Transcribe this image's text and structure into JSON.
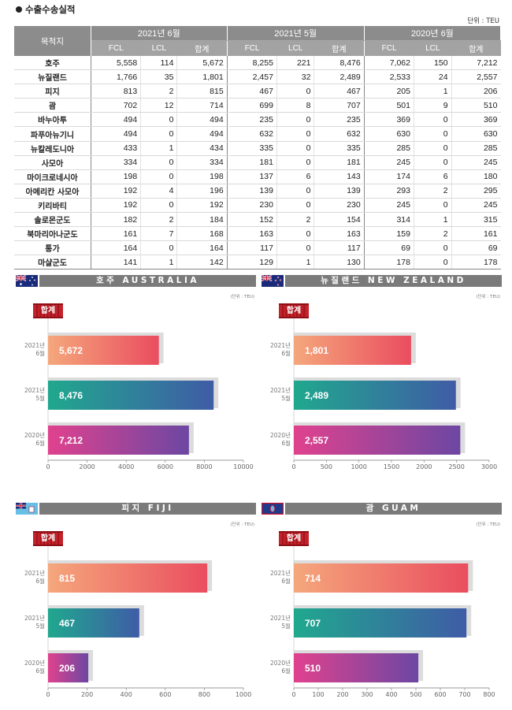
{
  "title": "수출수송실적",
  "unit": "단위 : TEU",
  "table": {
    "dest_header": "목적지",
    "groups": [
      "2021년 6월",
      "2021년 5월",
      "2020년 6월"
    ],
    "subheaders": [
      "FCL",
      "LCL",
      "합계"
    ],
    "rows": [
      {
        "name": "호주",
        "v": [
          "5,558",
          "114",
          "5,672",
          "8,255",
          "221",
          "8,476",
          "7,062",
          "150",
          "7,212"
        ]
      },
      {
        "name": "뉴질랜드",
        "v": [
          "1,766",
          "35",
          "1,801",
          "2,457",
          "32",
          "2,489",
          "2,533",
          "24",
          "2,557"
        ]
      },
      {
        "name": "피지",
        "v": [
          "813",
          "2",
          "815",
          "467",
          "0",
          "467",
          "205",
          "1",
          "206"
        ]
      },
      {
        "name": "괌",
        "v": [
          "702",
          "12",
          "714",
          "699",
          "8",
          "707",
          "501",
          "9",
          "510"
        ]
      },
      {
        "name": "바누아투",
        "v": [
          "494",
          "0",
          "494",
          "235",
          "0",
          "235",
          "369",
          "0",
          "369"
        ]
      },
      {
        "name": "파푸아뉴기니",
        "v": [
          "494",
          "0",
          "494",
          "632",
          "0",
          "632",
          "630",
          "0",
          "630"
        ]
      },
      {
        "name": "뉴칼레도니아",
        "v": [
          "433",
          "1",
          "434",
          "335",
          "0",
          "335",
          "285",
          "0",
          "285"
        ]
      },
      {
        "name": "사모아",
        "v": [
          "334",
          "0",
          "334",
          "181",
          "0",
          "181",
          "245",
          "0",
          "245"
        ]
      },
      {
        "name": "마이크로네시아",
        "v": [
          "198",
          "0",
          "198",
          "137",
          "6",
          "143",
          "174",
          "6",
          "180"
        ]
      },
      {
        "name": "아메리칸 사모아",
        "v": [
          "192",
          "4",
          "196",
          "139",
          "0",
          "139",
          "293",
          "2",
          "295"
        ]
      },
      {
        "name": "키리바티",
        "v": [
          "192",
          "0",
          "192",
          "230",
          "0",
          "230",
          "245",
          "0",
          "245"
        ]
      },
      {
        "name": "솔로몬군도",
        "v": [
          "182",
          "2",
          "184",
          "152",
          "2",
          "154",
          "314",
          "1",
          "315"
        ]
      },
      {
        "name": "북마리아나군도",
        "v": [
          "161",
          "7",
          "168",
          "163",
          "0",
          "163",
          "159",
          "2",
          "161"
        ]
      },
      {
        "name": "통가",
        "v": [
          "164",
          "0",
          "164",
          "117",
          "0",
          "117",
          "69",
          "0",
          "69"
        ]
      },
      {
        "name": "마샬군도",
        "v": [
          "141",
          "1",
          "142",
          "129",
          "1",
          "130",
          "178",
          "0",
          "178"
        ]
      }
    ]
  },
  "charts_common": {
    "badge": "합계",
    "small_unit": "(단위 : TEU)",
    "periods": [
      {
        "year": "2021년",
        "month": "6월"
      },
      {
        "year": "2021년",
        "month": "5월"
      },
      {
        "year": "2020년",
        "month": "6월"
      }
    ],
    "colors": {
      "bar1": [
        "#f5a77c",
        "#ea4d5f"
      ],
      "bar2": [
        "#20a88e",
        "#3f5ca6"
      ],
      "bar3": [
        "#e0428e",
        "#6c47a3"
      ],
      "banner": "#7a7a7a",
      "badge": "#c4222b"
    }
  },
  "chart_data": [
    {
      "type": "bar",
      "title": "호주 AUSTRALIA",
      "flag_icon": "australia-flag-icon",
      "categories": [
        "2021년 6월",
        "2021년 5월",
        "2020년 6월"
      ],
      "values": [
        5672,
        8476,
        7212
      ],
      "value_labels": [
        "5,672",
        "8,476",
        "7,212"
      ],
      "xlim": [
        0,
        10000
      ],
      "xticks": [
        0,
        2000,
        4000,
        6000,
        8000,
        10000
      ]
    },
    {
      "type": "bar",
      "title": "뉴질랜드 NEW ZEALAND",
      "flag_icon": "new-zealand-flag-icon",
      "categories": [
        "2021년 6월",
        "2021년 5월",
        "2020년 6월"
      ],
      "values": [
        1801,
        2489,
        2557
      ],
      "value_labels": [
        "1,801",
        "2,489",
        "2,557"
      ],
      "xlim": [
        0,
        3000
      ],
      "xticks": [
        0,
        500,
        1000,
        1500,
        2000,
        2500,
        3000
      ]
    },
    {
      "type": "bar",
      "title": "피지 FIJI",
      "flag_icon": "fiji-flag-icon",
      "categories": [
        "2021년 6월",
        "2021년 5월",
        "2020년 6월"
      ],
      "values": [
        815,
        467,
        206
      ],
      "value_labels": [
        "815",
        "467",
        "206"
      ],
      "xlim": [
        0,
        1000
      ],
      "xticks": [
        0,
        200,
        400,
        600,
        800,
        1000
      ]
    },
    {
      "type": "bar",
      "title": "괌 GUAM",
      "flag_icon": "guam-flag-icon",
      "categories": [
        "2021년 6월",
        "2021년 5월",
        "2020년 6월"
      ],
      "values": [
        714,
        707,
        510
      ],
      "value_labels": [
        "714",
        "707",
        "510"
      ],
      "xlim": [
        0,
        800
      ],
      "xticks": [
        0,
        100,
        200,
        300,
        400,
        500,
        600,
        700,
        800
      ]
    }
  ]
}
